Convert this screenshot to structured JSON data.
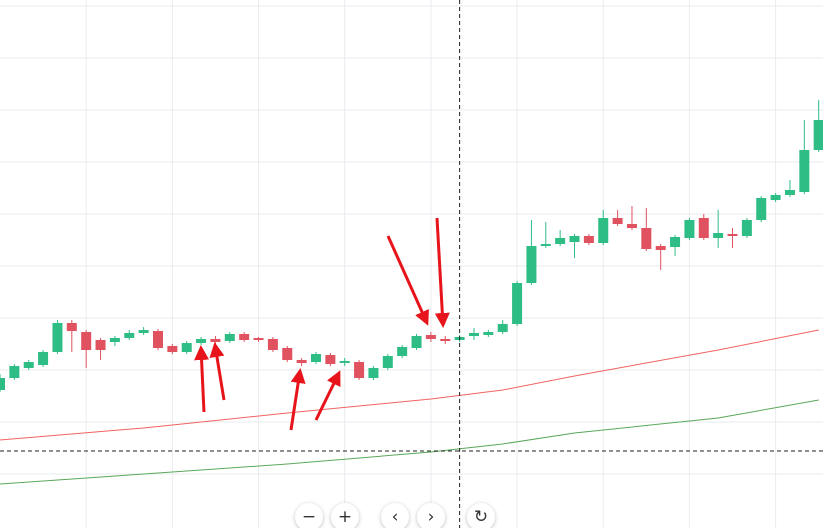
{
  "chart_data": {
    "type": "candlestick",
    "open": [
      138,
      150,
      160,
      163,
      176,
      205,
      196,
      188,
      186,
      190,
      195,
      197,
      182,
      176,
      185,
      189,
      187,
      194,
      190,
      189,
      180,
      168,
      166,
      173,
      165,
      166,
      150,
      160,
      172,
      180,
      193,
      189,
      188,
      192,
      193,
      196,
      204,
      245,
      282,
      284,
      286,
      292,
      285,
      310,
      304,
      300,
      282,
      281,
      290,
      310,
      290,
      294,
      292,
      308,
      328,
      333,
      336,
      378
    ],
    "high": [
      154,
      164,
      168,
      178,
      208,
      208,
      198,
      190,
      192,
      198,
      201,
      199,
      184,
      187,
      191,
      192,
      196,
      196,
      191,
      191,
      182,
      170,
      176,
      175,
      170,
      168,
      162,
      174,
      183,
      194,
      196,
      192,
      193,
      200,
      198,
      208,
      247,
      308,
      306,
      298,
      294,
      294,
      318,
      318,
      322,
      320,
      284,
      293,
      310,
      314,
      318,
      300,
      310,
      332,
      335,
      348,
      408,
      428
    ],
    "low": [
      136,
      148,
      158,
      161,
      174,
      176,
      160,
      168,
      182,
      188,
      193,
      178,
      174,
      174,
      183,
      183,
      185,
      186,
      186,
      176,
      166,
      162,
      164,
      162,
      162,
      148,
      148,
      158,
      170,
      178,
      186,
      184,
      186,
      188,
      191,
      194,
      202,
      243,
      280,
      282,
      270,
      283,
      283,
      302,
      298,
      277,
      258,
      272,
      288,
      288,
      280,
      280,
      290,
      306,
      326,
      331,
      334,
      376
    ],
    "close": [
      150,
      162,
      166,
      176,
      205,
      197,
      178,
      178,
      190,
      195,
      198,
      180,
      176,
      185,
      189,
      186,
      194,
      188,
      188,
      178,
      168,
      165,
      174,
      164,
      167,
      150,
      160,
      172,
      181,
      192,
      189,
      187,
      191,
      195,
      196,
      204,
      245,
      282,
      284,
      290,
      292,
      285,
      310,
      304,
      300,
      279,
      278,
      291,
      308,
      290,
      295,
      292,
      308,
      330,
      333,
      338,
      378,
      408
    ],
    "up_color": "#2ebd85",
    "down_color": "#e0525f",
    "lines": [
      {
        "color": "#f26262",
        "x": [
          0,
          10,
          20,
          30,
          35,
          40,
          50,
          57
        ],
        "values": [
          88,
          100,
          115,
          129,
          138,
          152,
          178,
          198
        ]
      },
      {
        "color": "#5aa85a",
        "x": [
          0,
          10,
          20,
          30,
          35,
          40,
          50,
          57
        ],
        "values": [
          44,
          54,
          64,
          76,
          84,
          95,
          110,
          128
        ]
      }
    ],
    "crosshair": {
      "x": 32,
      "y": 77
    },
    "xlim": [
      0,
      57.3
    ],
    "ylim": [
      0,
      528
    ],
    "xticks": [
      6,
      12,
      18,
      24,
      30,
      36,
      42,
      48,
      54
    ],
    "yticks": [
      54,
      106,
      158,
      210,
      262,
      314,
      366,
      418,
      470,
      522
    ],
    "grid": true,
    "controls": [
      "−",
      "+",
      "‹",
      "›",
      "↻"
    ]
  }
}
